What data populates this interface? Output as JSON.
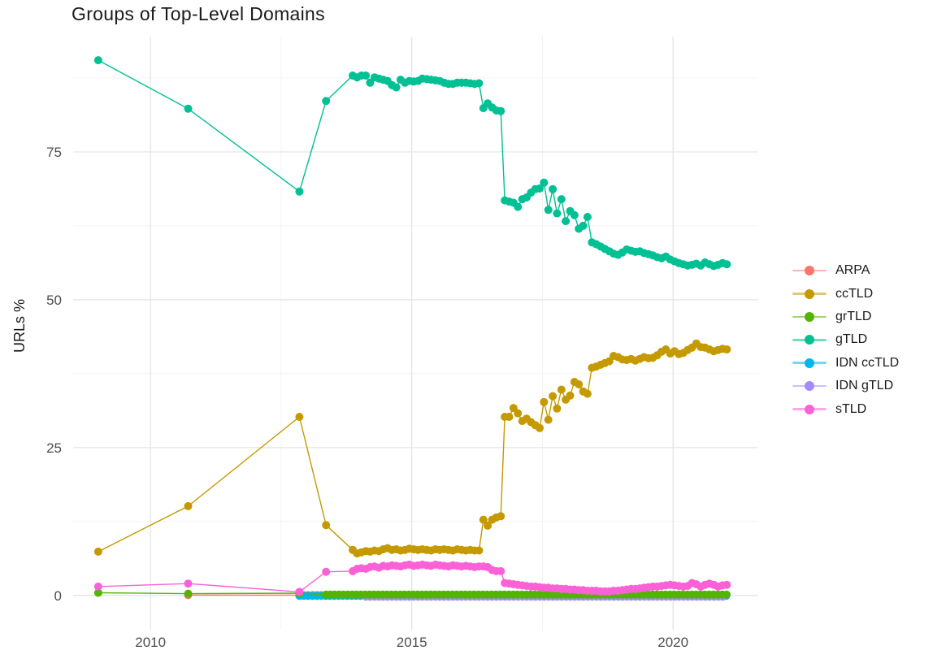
{
  "chart_data": {
    "type": "line",
    "title": "Groups of Top-Level Domains",
    "xlabel": "",
    "ylabel": "URLs %",
    "x_axis": {
      "domain": [
        2008.52,
        2021.63
      ],
      "ticks": [
        {
          "value": 2010,
          "label": "2010"
        },
        {
          "value": 2015,
          "label": "2015"
        },
        {
          "value": 2020,
          "label": "2020"
        }
      ],
      "minor": [
        2012.5,
        2017.5
      ]
    },
    "y_axis": {
      "domain": [
        -5.8,
        94.5
      ],
      "ticks": [
        {
          "value": 0,
          "label": "0"
        },
        {
          "value": 25,
          "label": "25"
        },
        {
          "value": 50,
          "label": "50"
        },
        {
          "value": 75,
          "label": "75"
        }
      ],
      "minor": [
        12.5,
        37.5,
        62.5,
        87.5
      ]
    },
    "grid": {
      "show": true,
      "major_color": "#e3e3e3",
      "minor_color": "#f1f1f1"
    },
    "legend": {
      "position": "right",
      "entries": [
        {
          "label": "ARPA",
          "color": "#F8766D"
        },
        {
          "label": "ccTLD",
          "color": "#C49A00"
        },
        {
          "label": "grTLD",
          "color": "#53B400"
        },
        {
          "label": "gTLD",
          "color": "#00C094"
        },
        {
          "label": "IDN ccTLD",
          "color": "#00B6EB"
        },
        {
          "label": "IDN gTLD",
          "color": "#A58AFF"
        },
        {
          "label": "sTLD",
          "color": "#FB61D7"
        }
      ]
    },
    "draw_order": [
      "ARPA",
      "IDN ccTLD",
      "IDN gTLD",
      "ccTLD",
      "grTLD",
      "gTLD",
      "sTLD"
    ],
    "series": [
      {
        "name": "ARPA",
        "color": "#F8766D",
        "segments": [
          {
            "points": [
              [
                2010.72,
                0.05
              ]
            ]
          },
          {
            "from": 2012.85,
            "to": 2021.03,
            "step": 0.0833,
            "value": 0.05
          }
        ]
      },
      {
        "name": "ccTLD",
        "color": "#C49A00",
        "segments": [
          {
            "points": [
              [
                2009.0,
                7.4
              ],
              [
                2010.72,
                15.1
              ],
              [
                2012.85,
                30.2
              ],
              [
                2013.36,
                11.9
              ]
            ]
          },
          {
            "from": 2013.87,
            "step": 0.0833,
            "values": [
              7.7,
              7.1,
              7.3,
              7.5,
              7.4,
              7.6,
              7.5,
              7.8,
              8.0,
              7.7,
              7.8,
              7.6,
              7.7,
              7.9,
              7.8,
              7.7,
              7.8,
              7.7,
              7.6,
              7.8,
              7.7,
              7.8,
              7.7,
              7.6,
              7.8,
              7.7,
              7.6,
              7.7,
              7.6,
              7.6
            ]
          },
          {
            "from": 2016.37,
            "step": 0.0833,
            "values": [
              12.8,
              11.8,
              12.8,
              13.2,
              13.4
            ]
          },
          {
            "from": 2016.78,
            "step": 0.0833,
            "values": [
              30.2,
              30.2,
              31.7,
              30.8,
              29.5,
              29.9,
              29.3,
              28.8,
              28.3,
              32.7,
              29.7,
              33.7,
              31.6,
              34.8,
              33.1,
              33.8,
              36.1,
              35.7,
              34.5,
              34.1,
              38.5,
              38.7,
              39.0,
              39.3,
              39.6,
              40.5,
              40.3,
              39.9,
              39.8,
              40.0,
              39.7,
              40.0,
              40.3,
              40.1,
              40.2,
              40.6,
              41.2,
              41.6,
              40.9,
              41.3,
              40.8,
              41.0,
              41.5,
              41.9,
              42.6,
              42.0,
              41.9,
              41.6,
              41.3,
              41.5,
              41.7,
              41.6
            ]
          }
        ]
      },
      {
        "name": "grTLD",
        "color": "#53B400",
        "segments": [
          {
            "points": [
              [
                2009.0,
                0.45
              ],
              [
                2010.72,
                0.3
              ],
              [
                2012.85,
                0.38
              ]
            ]
          },
          {
            "from": 2013.36,
            "to": 2021.03,
            "step": 0.0833,
            "value": 0.15
          }
        ]
      },
      {
        "name": "gTLD",
        "color": "#00C094",
        "segments": [
          {
            "points": [
              [
                2009.0,
                90.5
              ],
              [
                2010.72,
                82.3
              ],
              [
                2012.85,
                68.3
              ],
              [
                2013.36,
                83.6
              ]
            ]
          },
          {
            "from": 2013.87,
            "step": 0.0833,
            "values": [
              87.9,
              87.6,
              87.9,
              87.9,
              86.7,
              87.6,
              87.4,
              87.2,
              87.0,
              86.3,
              85.9,
              87.2,
              86.7,
              87.0,
              86.9,
              87.0,
              87.4,
              87.3,
              87.2,
              87.1,
              87.0,
              86.7,
              86.5,
              86.5,
              86.7,
              86.7,
              86.7,
              86.6,
              86.5,
              86.6
            ]
          },
          {
            "from": 2016.37,
            "step": 0.0833,
            "values": [
              82.4,
              83.2,
              82.5,
              82.0,
              81.9
            ]
          },
          {
            "from": 2016.78,
            "step": 0.0833,
            "values": [
              66.8,
              66.6,
              66.4,
              65.7,
              67.0,
              67.3,
              68.1,
              68.7,
              68.8,
              69.8,
              65.2,
              68.7,
              64.6,
              67.0,
              63.3,
              65.0,
              64.3,
              62.0,
              62.5,
              64.0,
              59.7,
              59.4,
              59.0,
              58.6,
              58.2,
              57.8,
              57.6,
              58.0,
              58.5,
              58.3,
              58.1,
              58.2,
              57.9,
              57.7,
              57.5,
              57.2,
              57.0,
              57.3,
              56.8,
              56.5,
              56.2,
              56.0,
              55.8,
              55.9,
              56.1,
              55.8,
              56.3,
              56.0,
              55.7,
              55.9,
              56.2,
              56.0
            ]
          }
        ]
      },
      {
        "name": "IDN ccTLD",
        "color": "#00B6EB",
        "segments": [
          {
            "from": 2012.85,
            "to": 2021.03,
            "step": 0.0833,
            "value": -0.05
          }
        ]
      },
      {
        "name": "IDN gTLD",
        "color": "#A58AFF",
        "segments": [
          {
            "from": 2014.12,
            "to": 2021.03,
            "step": 0.0833,
            "value": -0.2
          }
        ]
      },
      {
        "name": "sTLD",
        "color": "#FB61D7",
        "segments": [
          {
            "points": [
              [
                2009.0,
                1.5
              ],
              [
                2010.72,
                2.0
              ],
              [
                2012.85,
                0.6
              ],
              [
                2013.36,
                4.0
              ]
            ]
          },
          {
            "from": 2013.87,
            "step": 0.0833,
            "values": [
              4.1,
              4.5,
              4.6,
              4.5,
              4.8,
              4.9,
              4.7,
              5.0,
              4.9,
              5.1,
              5.0,
              4.9,
              5.1,
              5.2,
              5.0,
              5.1,
              5.2,
              5.1,
              5.0,
              5.2,
              5.1,
              5.0,
              4.9,
              5.1,
              5.0,
              4.9,
              5.0,
              4.9,
              4.8,
              4.9
            ]
          },
          {
            "from": 2016.37,
            "step": 0.0833,
            "values": [
              4.9,
              4.8,
              4.3,
              4.1,
              4.1
            ]
          },
          {
            "from": 2016.78,
            "step": 0.0833,
            "values": [
              2.1,
              2.0,
              1.9,
              1.8,
              1.7,
              1.6,
              1.5,
              1.5,
              1.4,
              1.3,
              1.3,
              1.2,
              1.2,
              1.1,
              1.1,
              1.0,
              1.0,
              0.9,
              0.9,
              0.8,
              0.8,
              0.8,
              0.7,
              0.7,
              0.7,
              0.8,
              0.8,
              0.9,
              1.0,
              1.1,
              1.1,
              1.2,
              1.3,
              1.4,
              1.5,
              1.5,
              1.6,
              1.7,
              1.8,
              1.7,
              1.6,
              1.5,
              1.6,
              2.1,
              1.9,
              1.5,
              1.8,
              2.0,
              1.8,
              1.5,
              1.7,
              1.8
            ]
          }
        ]
      }
    ]
  },
  "styles": {
    "tick_text_color": "#4d4d4d",
    "background": "#ffffff"
  }
}
